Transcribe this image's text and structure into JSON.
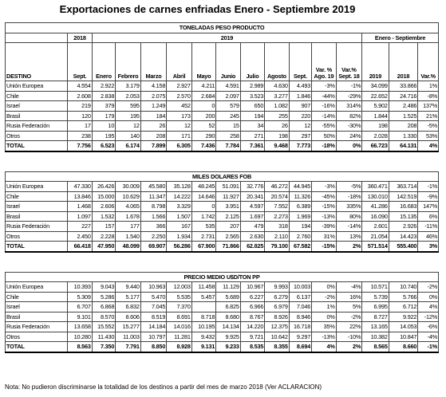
{
  "title": "Exportaciones de carnes enfriadas  Enero - Septiembre 2019",
  "note": "Nota: No pudieron discriminarse la totalidad de los destinos a partir del mes de marzo 2018 (Ver ACLARACION)",
  "header": {
    "year_2018": "2018",
    "year_2019": "2019",
    "period": "Enero - Septiembre",
    "columns": [
      "DESTINO",
      "Sept.",
      "Enero",
      "Febrero",
      "Marzo",
      "Abril",
      "Mayo",
      "Junio",
      "Julio",
      "Agosto",
      "Sept.",
      "Var. % Ago. 19",
      "Var.% Sept. 18",
      "2019",
      "2018",
      "Var.%"
    ]
  },
  "sections": [
    {
      "title": "TONELADAS PESO PRODUCTO",
      "rows": [
        [
          "Unión Europea",
          "4.554",
          "2.922",
          "3.179",
          "4.158",
          "2.927",
          "4.211",
          "4.591",
          "2.989",
          "4.630",
          "4.493",
          "-3%",
          "-1%",
          "34.099",
          "33.866",
          "1%"
        ],
        [
          "Chile",
          "2.608",
          "2.838",
          "2.053",
          "2.075",
          "2.570",
          "2.684",
          "2.097",
          "3.523",
          "3.277",
          "1.846",
          "-44%",
          "-29%",
          "22.652",
          "24.716",
          "-8%"
        ],
        [
          "Israel",
          "219",
          "379",
          "595",
          "1.249",
          "452",
          "0",
          "579",
          "650",
          "1.082",
          "907",
          "-16%",
          "314%",
          "5.902",
          "2.486",
          "137%"
        ],
        [
          "Brasil",
          "120",
          "179",
          "195",
          "184",
          "173",
          "200",
          "245",
          "194",
          "255",
          "220",
          "-14%",
          "82%",
          "1.844",
          "1.525",
          "21%"
        ],
        [
          "Rusia Federación",
          "17",
          "10",
          "12",
          "26",
          "12",
          "52",
          "15",
          "34",
          "26",
          "12",
          "-55%",
          "-30%",
          "198",
          "208",
          "-5%"
        ],
        [
          "Otros",
          "238",
          "195",
          "140",
          "208",
          "171",
          "290",
          "258",
          "271",
          "198",
          "297",
          "50%",
          "24%",
          "2.028",
          "1.330",
          "53%"
        ],
        [
          "TOTAL",
          "7.756",
          "6.523",
          "6.174",
          "7.899",
          "6.305",
          "7.436",
          "7.784",
          "7.361",
          "9.468",
          "7.773",
          "-18%",
          "0%",
          "66.723",
          "64.131",
          "4%"
        ]
      ]
    },
    {
      "title": "MILES DOLARES FOB",
      "rows": [
        [
          "Unión Europea",
          "47.330",
          "26.426",
          "30.009",
          "45.580",
          "35.128",
          "48.245",
          "51.091",
          "32.776",
          "46.272",
          "44.945",
          "-3%",
          "-5%",
          "360.471",
          "363.714",
          "-1%"
        ],
        [
          "Chile",
          "13.846",
          "15.000",
          "10.629",
          "11.347",
          "14.222",
          "14.646",
          "11.927",
          "20.341",
          "20.574",
          "11.326",
          "-45%",
          "-18%",
          "130.010",
          "142.519",
          "-9%"
        ],
        [
          "Israel",
          "1.468",
          "2.606",
          "4.065",
          "8.798",
          "3.329",
          "0",
          "3.951",
          "4.597",
          "7.552",
          "6.389",
          "-15%",
          "335%",
          "41.286",
          "16.683",
          "147%"
        ],
        [
          "Brasil",
          "1.097",
          "1.532",
          "1.678",
          "1.566",
          "1.507",
          "1.742",
          "2.125",
          "1.697",
          "2.273",
          "1.969",
          "-13%",
          "80%",
          "16.090",
          "15.135",
          "6%"
        ],
        [
          "Rusia Federación",
          "227",
          "157",
          "177",
          "366",
          "167",
          "535",
          "207",
          "479",
          "318",
          "194",
          "-39%",
          "-14%",
          "2.601",
          "2.926",
          "-11%"
        ],
        [
          "Otros",
          "2.450",
          "2.228",
          "1.540",
          "2.250",
          "1.934",
          "2.731",
          "2.565",
          "2.630",
          "2.110",
          "2.760",
          "31%",
          "13%",
          "21.054",
          "14.423",
          "46%"
        ],
        [
          "TOTAL",
          "66.418",
          "47.950",
          "48.099",
          "69.907",
          "56.286",
          "67.900",
          "71.866",
          "62.825",
          "79.100",
          "67.582",
          "-15%",
          "2%",
          "571.514",
          "555.400",
          "3%"
        ]
      ]
    },
    {
      "title": "PRECIO MEDIO U$D/TON PP",
      "rows": [
        [
          "Unión Europea",
          "10.393",
          "9.043",
          "9.440",
          "10.963",
          "12.003",
          "11.458",
          "11.129",
          "10.967",
          "9.993",
          "10.003",
          "0%",
          "-4%",
          "10.571",
          "10.740",
          "-2%"
        ],
        [
          "Chile",
          "5.309",
          "5.286",
          "5.177",
          "5.470",
          "5.535",
          "5.457",
          "5.689",
          "6.227",
          "6.279",
          "6.137",
          "-2%",
          "16%",
          "5.739",
          "5.766",
          "0%"
        ],
        [
          "Israel",
          "6.707",
          "6.868",
          "6.832",
          "7.045",
          "7.370",
          null,
          "6.825",
          "6.966",
          "6.979",
          "7.046",
          "1%",
          "5%",
          "6.995",
          "6.712",
          "4%"
        ],
        [
          "Brasil",
          "9.101",
          "8.570",
          "8.606",
          "8.519",
          "8.691",
          "8.718",
          "8.680",
          "8.767",
          "8.926",
          "8.946",
          "0%",
          "-2%",
          "8.727",
          "9.922",
          "-12%"
        ],
        [
          "Rusia Federación",
          "13.658",
          "15.552",
          "15.277",
          "14.184",
          "14.016",
          "10.195",
          "14.134",
          "14.220",
          "12.375",
          "16.718",
          "35%",
          "22%",
          "13.165",
          "14.053",
          "-6%"
        ],
        [
          "Otros",
          "10.280",
          "11.430",
          "11.003",
          "10.797",
          "11.281",
          "9.432",
          "9.925",
          "9.721",
          "10.642",
          "9.297",
          "-13%",
          "-10%",
          "10.382",
          "10.847",
          "-4%"
        ],
        [
          "TOTAL",
          "8.563",
          "7.350",
          "7.791",
          "8.850",
          "8.928",
          "9.131",
          "9.233",
          "8.535",
          "8.355",
          "8.694",
          "4%",
          "2%",
          "8.565",
          "8.660",
          "-1%"
        ]
      ]
    }
  ]
}
